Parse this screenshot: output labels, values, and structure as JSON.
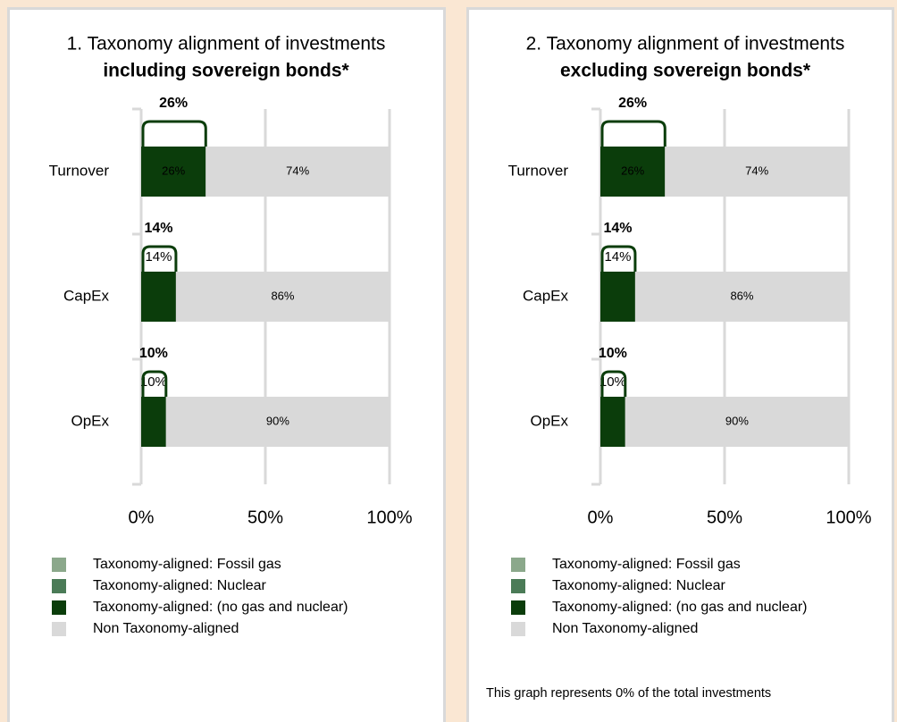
{
  "chart_data": [
    {
      "type": "bar",
      "orientation": "horizontal",
      "stacked": true,
      "title": "1. Taxonomy alignment of investments",
      "subtitle": "including sovereign bonds*",
      "categories": [
        "Turnover",
        "CapEx",
        "OpEx"
      ],
      "series": [
        {
          "name": "Taxonomy-aligned: Fossil gas",
          "color": "#8ba88b",
          "values": [
            0,
            0,
            0
          ]
        },
        {
          "name": "Taxonomy-aligned: Nuclear",
          "color": "#4b7b57",
          "values": [
            0,
            0,
            0
          ]
        },
        {
          "name": "Taxonomy-aligned: (no gas and nuclear)",
          "color": "#0b3d0b",
          "values": [
            26,
            14,
            10
          ],
          "value_labels": [
            "26%",
            "14%",
            "10%"
          ]
        },
        {
          "name": "Non Taxonomy-aligned",
          "color": "#d9d9d9",
          "values": [
            74,
            86,
            90
          ],
          "value_labels": [
            "74%",
            "86%",
            "90%"
          ]
        }
      ],
      "totals": [
        {
          "value": 26,
          "label": "26%"
        },
        {
          "value": 14,
          "label": "14%"
        },
        {
          "value": 10,
          "label": "10%"
        }
      ],
      "xlim": [
        0,
        100
      ],
      "xticks": [
        {
          "value": 0,
          "label": "0%"
        },
        {
          "value": 50,
          "label": "50%"
        },
        {
          "value": 100,
          "label": "100%"
        }
      ],
      "grid": true,
      "legend": "bottom"
    },
    {
      "type": "bar",
      "orientation": "horizontal",
      "stacked": true,
      "title": "2. Taxonomy alignment of investments",
      "subtitle": "excluding sovereign bonds*",
      "categories": [
        "Turnover",
        "CapEx",
        "OpEx"
      ],
      "series": [
        {
          "name": "Taxonomy-aligned: Fossil gas",
          "color": "#8ba88b",
          "values": [
            0,
            0,
            0
          ]
        },
        {
          "name": "Taxonomy-aligned: Nuclear",
          "color": "#4b7b57",
          "values": [
            0,
            0,
            0
          ]
        },
        {
          "name": "Taxonomy-aligned: (no gas and nuclear)",
          "color": "#0b3d0b",
          "values": [
            26,
            14,
            10
          ],
          "value_labels": [
            "26%",
            "14%",
            "10%"
          ]
        },
        {
          "name": "Non Taxonomy-aligned",
          "color": "#d9d9d9",
          "values": [
            74,
            86,
            90
          ],
          "value_labels": [
            "74%",
            "86%",
            "90%"
          ]
        }
      ],
      "totals": [
        {
          "value": 26,
          "label": "26%"
        },
        {
          "value": 14,
          "label": "14%"
        },
        {
          "value": 10,
          "label": "10%"
        }
      ],
      "xlim": [
        0,
        100
      ],
      "xticks": [
        {
          "value": 0,
          "label": "0%"
        },
        {
          "value": 50,
          "label": "50%"
        },
        {
          "value": 100,
          "label": "100%"
        }
      ],
      "grid": true,
      "legend": "bottom",
      "note": "This graph represents 0% of the total investments"
    }
  ]
}
